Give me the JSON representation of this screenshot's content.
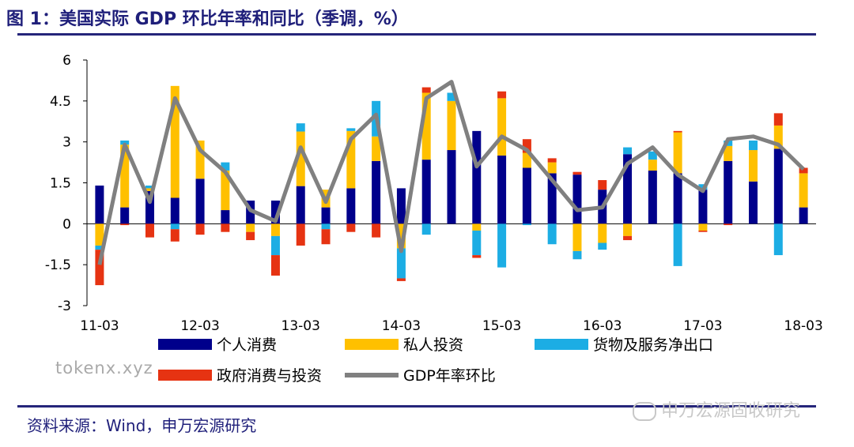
{
  "figure_title": "图 1：美国实际 GDP 环比年率和同比（季调，%）",
  "source_note": "资料来源：Wind，申万宏源研究",
  "watermark": "tokenx.xyz",
  "wechat_mark": "申万宏源固收研究",
  "colors": {
    "title": "#1f1f7a",
    "rule": "#25257a",
    "consumption": "#00008b",
    "investment": "#ffc000",
    "netexports": "#1cade4",
    "government": "#e63312",
    "gdp_line": "#808080"
  },
  "chart_data": {
    "type": "bar",
    "stacked": true,
    "title": "美国实际 GDP 环比年率和同比（季调，%）",
    "xlabel": "",
    "ylabel": "",
    "ylim": [
      -3,
      6
    ],
    "yticks": [
      "6",
      "4.5",
      "3",
      "1.5",
      "0",
      "-1.5",
      "-3"
    ],
    "ytick_values": [
      6,
      4.5,
      3,
      1.5,
      0,
      -1.5,
      -3
    ],
    "categories": [
      "11-03",
      "11-06",
      "11-09",
      "11-12",
      "12-03",
      "12-06",
      "12-09",
      "12-12",
      "13-03",
      "13-06",
      "13-09",
      "13-12",
      "14-03",
      "14-06",
      "14-09",
      "14-12",
      "15-03",
      "15-06",
      "15-09",
      "15-12",
      "16-03",
      "16-06",
      "16-09",
      "16-12",
      "17-03",
      "17-06",
      "17-09",
      "17-12",
      "18-03"
    ],
    "xtick_labels": [
      "11-03",
      "12-03",
      "13-03",
      "14-03",
      "15-03",
      "16-03",
      "17-03",
      "18-03"
    ],
    "series": [
      {
        "name": "个人消费",
        "key": "consumption",
        "kind": "bar",
        "values": [
          1.4,
          0.6,
          1.2,
          0.95,
          1.65,
          0.5,
          0.85,
          0.85,
          1.38,
          0.6,
          1.3,
          2.3,
          1.3,
          2.35,
          2.7,
          3.4,
          2.5,
          2.05,
          1.85,
          1.8,
          1.25,
          2.55,
          1.95,
          1.85,
          1.25,
          2.3,
          1.55,
          2.75,
          0.6
        ]
      },
      {
        "name": "私人投资",
        "key": "investment",
        "kind": "bar",
        "values": [
          -0.8,
          2.3,
          0.1,
          4.1,
          1.4,
          1.45,
          -0.3,
          -0.45,
          2.0,
          0.65,
          2.1,
          0.9,
          -0.9,
          2.45,
          1.8,
          -0.25,
          2.1,
          0.55,
          0.4,
          -1.0,
          -0.7,
          -0.45,
          0.4,
          1.5,
          -0.25,
          0.55,
          1.15,
          0.85,
          1.25
        ]
      },
      {
        "name": "货物及服务净出口",
        "key": "netexports",
        "kind": "bar",
        "values": [
          -0.15,
          0.15,
          0.1,
          -0.2,
          0.0,
          0.3,
          0.0,
          -0.7,
          0.3,
          -0.2,
          0.1,
          1.3,
          -1.1,
          -0.4,
          0.3,
          -0.9,
          -1.6,
          -0.05,
          -0.75,
          -0.3,
          -0.25,
          0.25,
          0.3,
          -1.55,
          0.2,
          0.2,
          0.35,
          -1.15,
          0.0
        ]
      },
      {
        "name": "政府消费与投资",
        "key": "government",
        "kind": "bar",
        "values": [
          -1.3,
          -0.05,
          -0.5,
          -0.45,
          -0.4,
          -0.3,
          -0.3,
          -0.75,
          -0.8,
          -0.55,
          -0.3,
          -0.5,
          -0.1,
          0.2,
          0.0,
          -0.1,
          0.25,
          0.5,
          0.15,
          0.1,
          0.35,
          -0.15,
          0.0,
          0.05,
          -0.05,
          -0.05,
          0.0,
          0.45,
          0.2
        ]
      },
      {
        "name": "GDP年率环比",
        "key": "gdp_line",
        "kind": "line",
        "values": [
          -1.5,
          2.9,
          0.8,
          4.6,
          2.7,
          1.9,
          0.5,
          0.1,
          2.8,
          0.8,
          3.1,
          4.0,
          -1.0,
          4.6,
          5.2,
          2.1,
          3.2,
          2.7,
          1.6,
          0.5,
          0.6,
          2.2,
          2.8,
          1.8,
          1.2,
          3.1,
          3.2,
          2.9,
          2.0
        ]
      }
    ],
    "legend": [
      {
        "label": "个人消费",
        "key": "consumption",
        "kind": "bar"
      },
      {
        "label": "私人投资",
        "key": "investment",
        "kind": "bar"
      },
      {
        "label": "货物及服务净出口",
        "key": "netexports",
        "kind": "bar"
      },
      {
        "label": "政府消费与投资",
        "key": "government",
        "kind": "bar"
      },
      {
        "label": "GDP年率环比",
        "key": "gdp_line",
        "kind": "line"
      }
    ],
    "legend_position": "bottom",
    "grid": false
  }
}
